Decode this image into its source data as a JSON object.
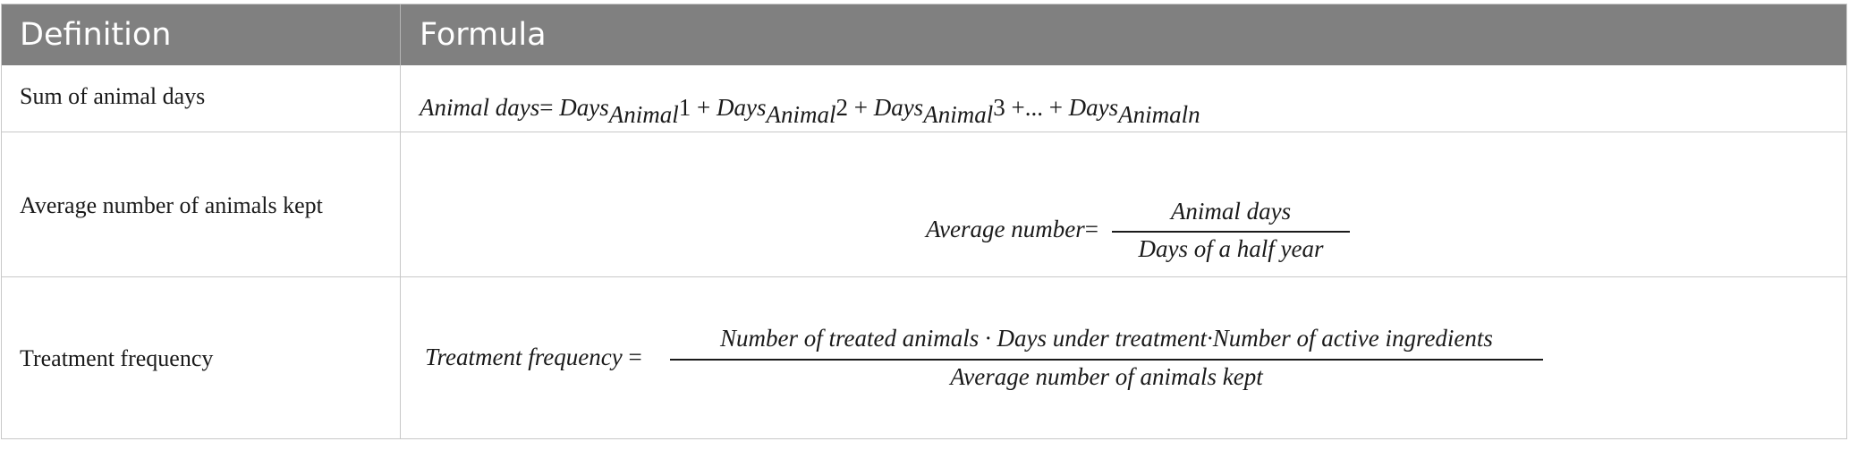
{
  "table": {
    "headers": [
      "Definition",
      "Formula"
    ],
    "rows": [
      {
        "definition": "Sum of animal days",
        "formula": {
          "lhs": "Animal days",
          "terms": [
            {
              "base": "Days",
              "sub": "Animal",
              "idx": "1"
            },
            {
              "base": "Days",
              "sub": "Animal",
              "idx": "2"
            },
            {
              "base": "Days",
              "sub": "Animal",
              "idx": "3"
            },
            {
              "base": "...",
              "sub": "",
              "idx": ""
            },
            {
              "base": "Days",
              "sub": "Animaln",
              "idx": ""
            }
          ]
        }
      },
      {
        "definition": "Average number of animals kept",
        "formula": {
          "lhs": "Average number",
          "numerator": "Animal  days",
          "denominator": "Days  of  a half  year"
        }
      },
      {
        "definition": "Treatment frequency",
        "formula": {
          "lhs": "Treatment  frequency",
          "numerator": "Number  of  treated animals · Days under  treatment·Number  of  active ingredients",
          "denominator": "Average number  of  animals kept"
        }
      }
    ]
  }
}
